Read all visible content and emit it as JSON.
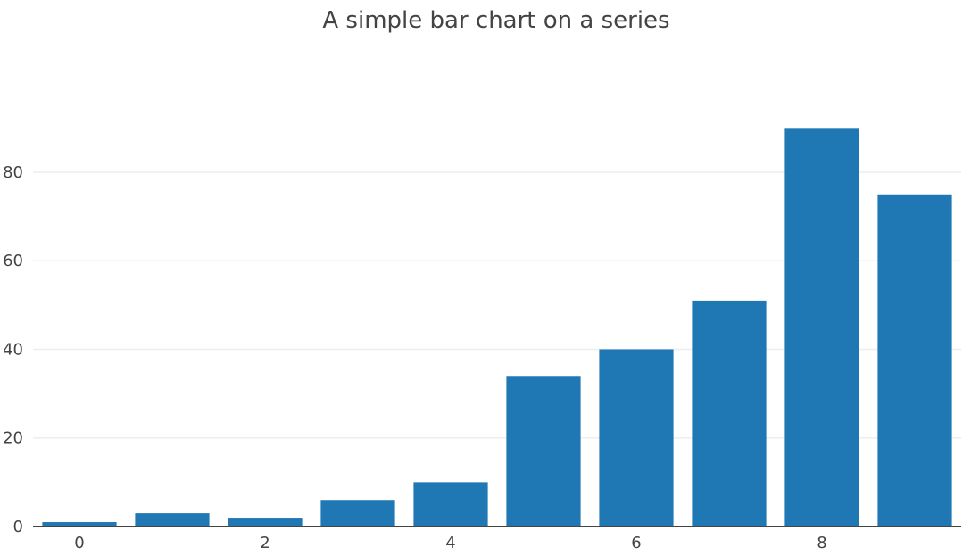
{
  "chart_data": {
    "type": "bar",
    "title": "A simple bar chart on a series",
    "x": [
      0,
      1,
      2,
      3,
      4,
      5,
      6,
      7,
      8,
      9
    ],
    "values": [
      1,
      3,
      2,
      6,
      10,
      34,
      40,
      51,
      90,
      75
    ],
    "xticks": [
      0,
      2,
      4,
      6,
      8
    ],
    "yticks": [
      0,
      20,
      40,
      60,
      80
    ],
    "xlim": [
      -0.5,
      9.5
    ],
    "ylim": [
      0,
      94.7
    ],
    "grid": "horizontal",
    "color": "#1f77b4"
  }
}
